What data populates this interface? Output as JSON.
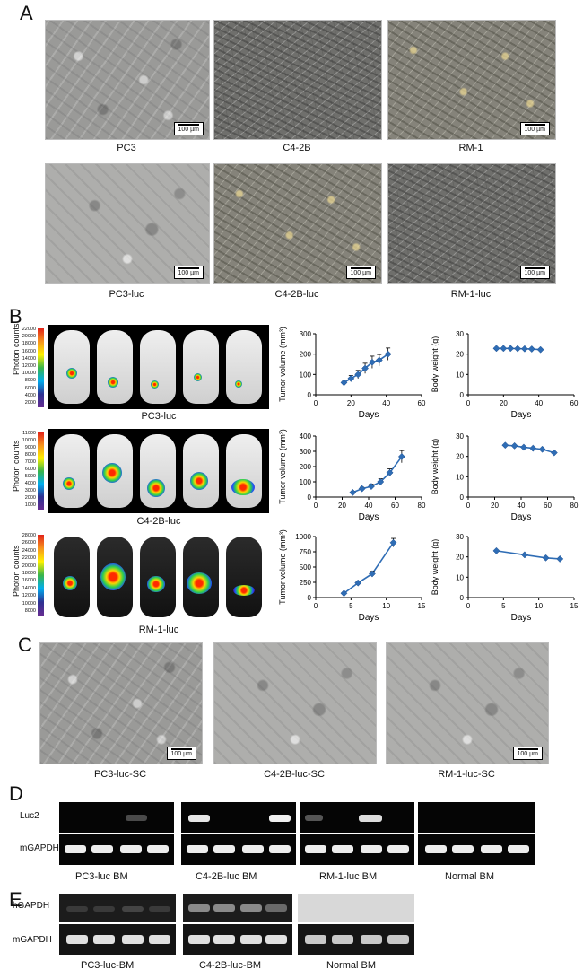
{
  "panels": {
    "A": "A",
    "B": "B",
    "C": "C",
    "D": "D",
    "E": "E"
  },
  "panel_a": {
    "captions": [
      "PC3",
      "C4-2B",
      "RM-1",
      "PC3-luc",
      "C4-2B-luc",
      "RM-1-luc"
    ],
    "scale_label": "100 µm"
  },
  "panel_b": {
    "photon_counts_label": "Photon counts",
    "rows": [
      {
        "name": "PC3-luc",
        "colorbar_ticks": [
          "22000",
          "20000",
          "18000",
          "16000",
          "14000",
          "12000",
          "10000",
          "8000",
          "6000",
          "4000",
          "2000"
        ]
      },
      {
        "name": "C4-2B-luc",
        "colorbar_ticks": [
          "11000",
          "10000",
          "9000",
          "8000",
          "7000",
          "6000",
          "5000",
          "4000",
          "3000",
          "2000",
          "1000"
        ]
      },
      {
        "name": "RM-1-luc",
        "colorbar_ticks": [
          "28000",
          "26000",
          "24000",
          "22000",
          "20000",
          "18000",
          "16000",
          "14000",
          "12000",
          "10000",
          "8000"
        ]
      }
    ]
  },
  "panel_c": {
    "captions": [
      "PC3-luc-SC",
      "C4-2B-luc-SC",
      "RM-1-luc-SC"
    ],
    "scale_label": "100 µm"
  },
  "panel_d": {
    "row_labels": [
      "Luc2",
      "mGAPDH"
    ],
    "captions": [
      "PC3-luc BM",
      "C4-2B-luc BM",
      "RM-1-luc BM",
      "Normal BM"
    ]
  },
  "panel_e": {
    "row_labels": [
      "hGAPDH",
      "mGAPDH"
    ],
    "captions": [
      "PC3-luc-BM",
      "C4-2B-luc-BM",
      "Normal BM"
    ]
  },
  "chart_data": [
    {
      "type": "line",
      "ylabel": "Tumor volume (mm³)",
      "xlabel": "Days",
      "xlim": [
        0,
        60
      ],
      "ylim": [
        0,
        300
      ],
      "xticks": [
        "0",
        "20",
        "40",
        "60"
      ],
      "yticks": [
        "0",
        "100",
        "200",
        "300"
      ],
      "x": [
        16,
        20,
        24,
        28,
        32,
        36,
        41
      ],
      "values": [
        60,
        80,
        100,
        130,
        160,
        170,
        200
      ],
      "errors": [
        12,
        15,
        20,
        25,
        30,
        28,
        30
      ],
      "color": "#2f6db5"
    },
    {
      "type": "line",
      "ylabel": "Body weight (g)",
      "xlabel": "Days",
      "xlim": [
        0,
        60
      ],
      "ylim": [
        0,
        30
      ],
      "xticks": [
        "0",
        "20",
        "40",
        "60"
      ],
      "yticks": [
        "0",
        "10",
        "20",
        "30"
      ],
      "x": [
        16,
        20,
        24,
        28,
        32,
        36,
        41
      ],
      "values": [
        22.8,
        22.8,
        22.8,
        22.7,
        22.6,
        22.5,
        22.2
      ],
      "errors": [
        0,
        0,
        0,
        0,
        0,
        0,
        0
      ],
      "color": "#2f6db5"
    },
    {
      "type": "line",
      "ylabel": "Tumor volume (mm³)",
      "xlabel": "Days",
      "xlim": [
        0,
        80
      ],
      "ylim": [
        0,
        400
      ],
      "xticks": [
        "0",
        "20",
        "40",
        "60",
        "80"
      ],
      "yticks": [
        "0",
        "100",
        "200",
        "300",
        "400"
      ],
      "x": [
        28,
        35,
        42,
        49,
        56,
        65
      ],
      "values": [
        30,
        55,
        70,
        100,
        160,
        265
      ],
      "errors": [
        5,
        10,
        15,
        20,
        25,
        40
      ],
      "color": "#2f6db5"
    },
    {
      "type": "line",
      "ylabel": "Body weight (g)",
      "xlabel": "Days",
      "xlim": [
        0,
        80
      ],
      "ylim": [
        0,
        30
      ],
      "xticks": [
        "0",
        "20",
        "40",
        "60",
        "80"
      ],
      "yticks": [
        "0",
        "10",
        "20",
        "30"
      ],
      "x": [
        28,
        35,
        42,
        49,
        56,
        65
      ],
      "values": [
        25.5,
        25.2,
        24.5,
        24,
        23.5,
        21.8
      ],
      "errors": [
        0,
        0,
        0,
        0,
        0,
        0
      ],
      "color": "#2f6db5"
    },
    {
      "type": "line",
      "ylabel": "Tumor volume (mm³)",
      "xlabel": "Days",
      "xlim": [
        0,
        15
      ],
      "ylim": [
        0,
        1000
      ],
      "xticks": [
        "0",
        "5",
        "10",
        "15"
      ],
      "yticks": [
        "0",
        "250",
        "500",
        "750",
        "1000"
      ],
      "x": [
        4,
        6,
        8,
        11
      ],
      "values": [
        70,
        240,
        390,
        900
      ],
      "errors": [
        10,
        20,
        40,
        70
      ],
      "color": "#2f6db5"
    },
    {
      "type": "line",
      "ylabel": "Body weight (g)",
      "xlabel": "Days",
      "xlim": [
        0,
        15
      ],
      "ylim": [
        0,
        30
      ],
      "xticks": [
        "0",
        "5",
        "10",
        "15"
      ],
      "yticks": [
        "0",
        "10",
        "20",
        "30"
      ],
      "x": [
        4,
        8,
        11,
        13
      ],
      "values": [
        23,
        21,
        19.5,
        19
      ],
      "errors": [
        0,
        0,
        0,
        0
      ],
      "color": "#2f6db5"
    }
  ]
}
